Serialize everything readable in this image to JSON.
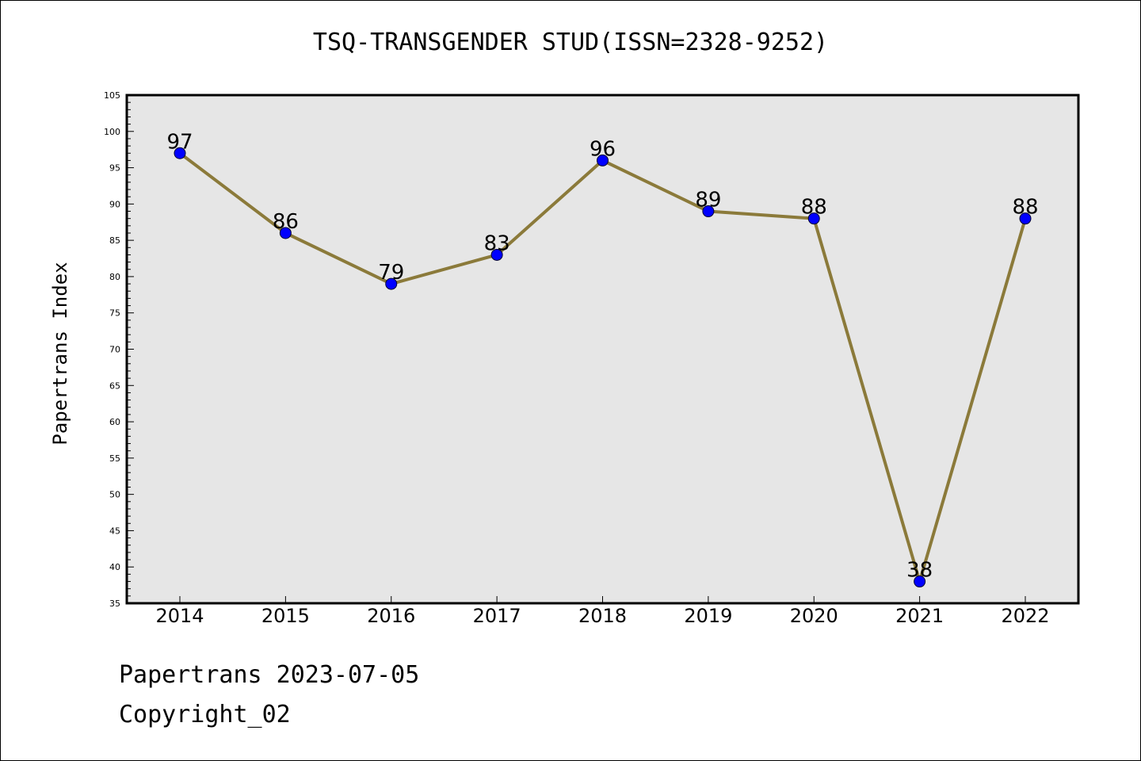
{
  "title": "TSQ-TRANSGENDER STUD(ISSN=2328-9252)",
  "footer": {
    "date_line": "Papertrans 2023-07-05",
    "copyright_line": "Copyright_02"
  },
  "chart_data": {
    "type": "line",
    "title": "TSQ-TRANSGENDER STUD(ISSN=2328-9252)",
    "xlabel": "",
    "ylabel": "Papertrans Index",
    "categories": [
      "2014",
      "2015",
      "2016",
      "2017",
      "2018",
      "2019",
      "2020",
      "2021",
      "2022"
    ],
    "values": [
      97,
      86,
      79,
      83,
      96,
      89,
      88,
      38,
      88
    ],
    "ylim": [
      35,
      105
    ],
    "yticks": [
      35,
      40,
      45,
      50,
      55,
      60,
      65,
      70,
      75,
      80,
      85,
      90,
      95,
      100,
      105
    ],
    "grid": false,
    "plot_background": "#e6e6e6",
    "line_color": "#8b7a3a",
    "marker_color": "#0000ff",
    "data_labels": true
  }
}
